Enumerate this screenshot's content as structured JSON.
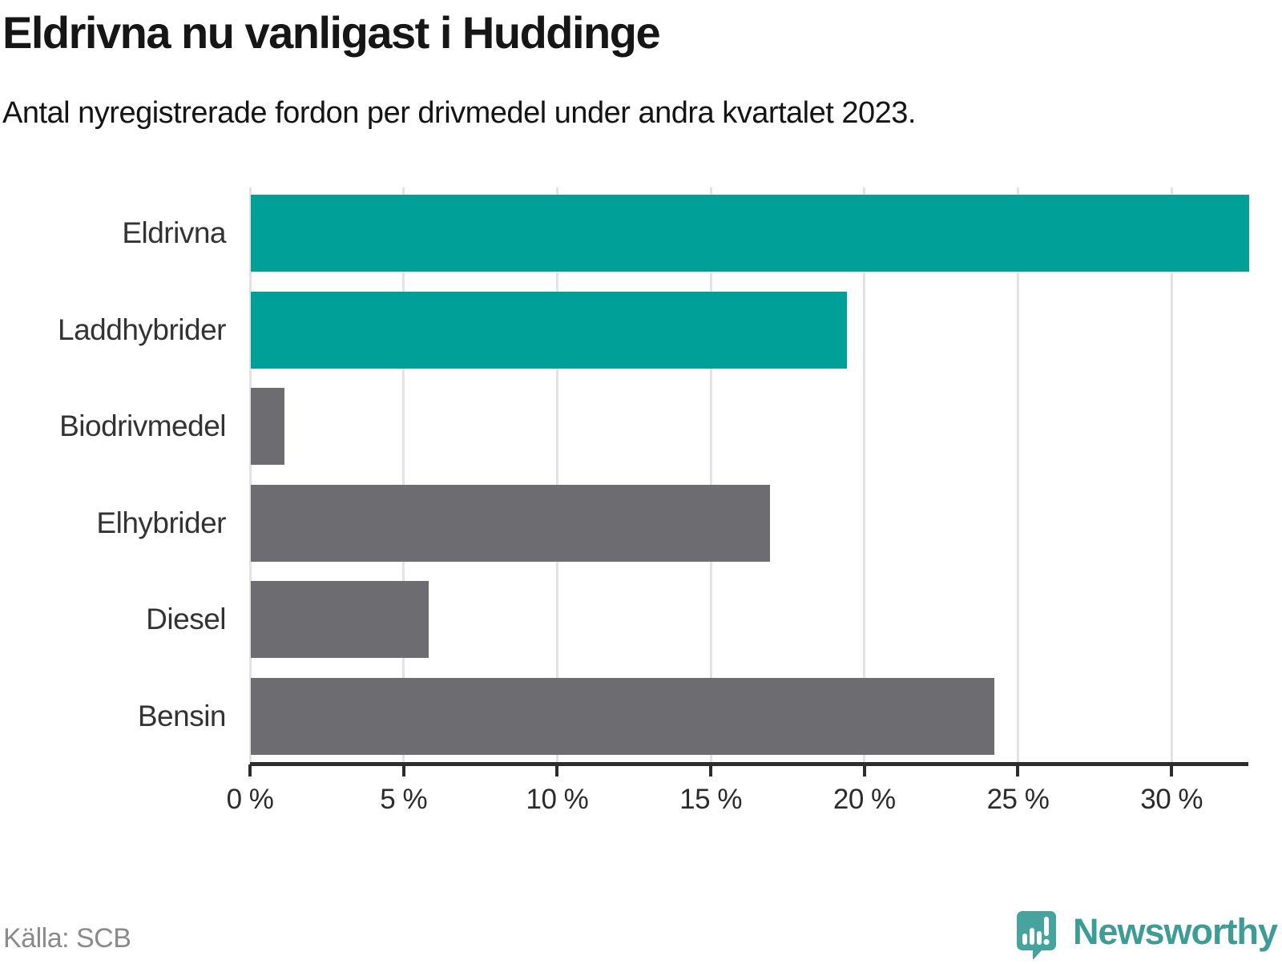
{
  "title": "Eldrivna nu vanligast i Huddinge",
  "subtitle": "Antal nyregistrerade fordon per drivmedel under andra kvartalet 2023.",
  "source_label": "Källa: SCB",
  "brand": {
    "name": "Newsworthy",
    "icon": "speech-bubble-bar-chart-icon",
    "logo_color": "#46a39d",
    "text_color": "#3e9c96"
  },
  "colors": {
    "highlight_bar": "#00a099",
    "default_bar": "#6c6c71",
    "gridline": "#e3e3e3",
    "axis": "#2d2d2d",
    "title_text": "#161616",
    "category_text": "#333333",
    "source_text": "#8a8a8a"
  },
  "chart_data": {
    "type": "bar",
    "orientation": "horizontal",
    "title": "Eldrivna nu vanligast i Huddinge",
    "subtitle": "Antal nyregistrerade fordon per drivmedel under andra kvartalet 2023.",
    "categories": [
      "Eldrivna",
      "Laddhybrider",
      "Biodrivmedel",
      "Elhybrider",
      "Diesel",
      "Bensin"
    ],
    "values": [
      32.5,
      19.4,
      1.1,
      16.9,
      5.8,
      24.2
    ],
    "unit": "%",
    "bar_colors": [
      "#00a099",
      "#00a099",
      "#6c6c71",
      "#6c6c71",
      "#6c6c71",
      "#6c6c71"
    ],
    "highlighted_categories": [
      "Eldrivna",
      "Laddhybrider"
    ],
    "xlabel": "",
    "ylabel": "",
    "xlim": [
      0,
      32.5
    ],
    "x_tick_values": [
      0,
      5,
      10,
      15,
      20,
      25,
      30
    ],
    "x_tick_labels": [
      "0 %",
      "5 %",
      "10 %",
      "15 %",
      "20 %",
      "25 %",
      "30 %"
    ],
    "grid": "vertical",
    "legend": "none"
  }
}
